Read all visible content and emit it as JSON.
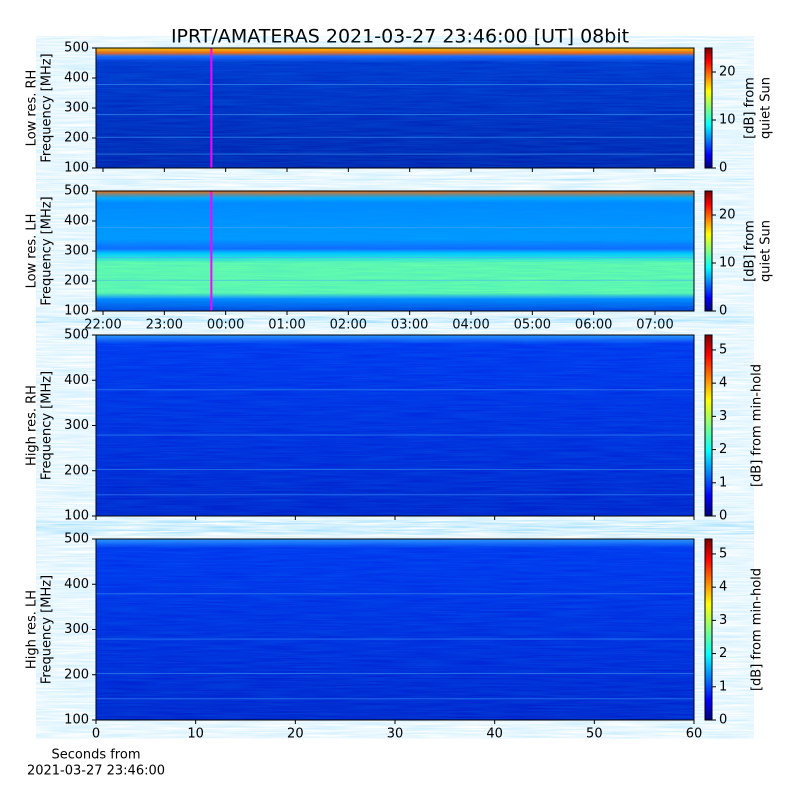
{
  "chart_data": [
    {
      "type": "heatmap",
      "title": "IPRT/AMATERAS 2021-03-27 23:46:00 [UT]   08bit",
      "ylabel": [
        "Low res. RH",
        "Frequency [MHz]"
      ],
      "ylim": [
        100,
        500
      ],
      "yticks": [
        100,
        200,
        300,
        400,
        500
      ],
      "xlim": [
        21.886,
        31.636
      ],
      "xticks": [
        22,
        23,
        24,
        25,
        26,
        27,
        28,
        29,
        30,
        31
      ],
      "xticklabels": false,
      "vline": 23.767,
      "vline_color": "#ff00ff",
      "colorbar": {
        "label": [
          "[dB] from",
          "quiet Sun"
        ],
        "lim": [
          0,
          25
        ],
        "ticks": [
          0,
          10,
          20
        ]
      }
    },
    {
      "type": "heatmap",
      "ylabel": [
        "Low res. LH",
        "Frequency [MHz]"
      ],
      "ylim": [
        100,
        500
      ],
      "yticks": [
        100,
        200,
        300,
        400,
        500
      ],
      "xlim": [
        21.886,
        31.636
      ],
      "xticks": [
        {
          "value": 22,
          "label": "22:00"
        },
        {
          "value": 23,
          "label": "23:00"
        },
        {
          "value": 24,
          "label": "00:00"
        },
        {
          "value": 25,
          "label": "01:00"
        },
        {
          "value": 26,
          "label": "02:00"
        },
        {
          "value": 27,
          "label": "03:00"
        },
        {
          "value": 28,
          "label": "04:00"
        },
        {
          "value": 29,
          "label": "05:00"
        },
        {
          "value": 30,
          "label": "06:00"
        },
        {
          "value": 31,
          "label": "07:00"
        }
      ],
      "xticklabels": true,
      "vline": 23.767,
      "vline_color": "#ff00ff",
      "colorbar": {
        "label": [
          "[dB] from",
          "quiet Sun"
        ],
        "lim": [
          0,
          25
        ],
        "ticks": [
          0,
          10,
          20
        ]
      }
    },
    {
      "type": "heatmap",
      "ylabel": [
        "High res. RH",
        "Frequency [MHz]"
      ],
      "ylim": [
        100,
        500
      ],
      "yticks": [
        100,
        200,
        300,
        400,
        500
      ],
      "xlim": [
        0,
        60
      ],
      "xticks": [
        0,
        10,
        20,
        30,
        40,
        50,
        60
      ],
      "xticklabels": false,
      "colorbar": {
        "label": [
          "[dB] from min-hold"
        ],
        "lim": [
          0,
          5.45
        ],
        "ticks": [
          0,
          1,
          2,
          3,
          4,
          5
        ]
      }
    },
    {
      "type": "heatmap",
      "ylabel": [
        "High res. LH",
        "Frequency [MHz]"
      ],
      "ylim": [
        100,
        500
      ],
      "yticks": [
        100,
        200,
        300,
        400,
        500
      ],
      "xlim": [
        0,
        60
      ],
      "xticks": [
        0,
        10,
        20,
        30,
        40,
        50,
        60
      ],
      "xticklabels": true,
      "xlabel": [
        "Seconds from",
        "2021-03-27 23:46:00"
      ],
      "colorbar": {
        "label": [
          "[dB] from min-hold"
        ],
        "lim": [
          0,
          5.45
        ],
        "ticks": [
          0,
          1,
          2,
          3,
          4,
          5
        ]
      }
    }
  ]
}
